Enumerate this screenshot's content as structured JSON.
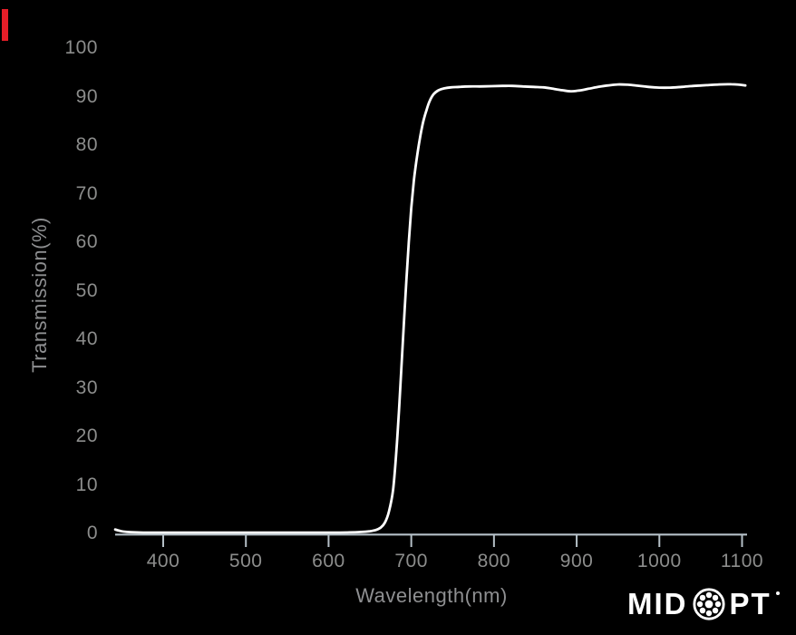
{
  "chart_data": {
    "type": "line",
    "title": "",
    "xlabel": "Wavelength(nm)",
    "ylabel": "Transmission(%)",
    "x_ticks": [
      400,
      500,
      600,
      700,
      800,
      900,
      1000,
      1100
    ],
    "y_ticks": [
      0,
      10,
      20,
      30,
      40,
      50,
      60,
      70,
      80,
      90,
      100
    ],
    "xlim": [
      342,
      1106
    ],
    "ylim": [
      0,
      100
    ],
    "grid": false,
    "legend": null,
    "series": [
      {
        "name": "transmission",
        "color": "#ffffff",
        "points": [
          [
            342,
            0.8
          ],
          [
            348,
            0.5
          ],
          [
            356,
            0.3
          ],
          [
            368,
            0.2
          ],
          [
            385,
            0.15
          ],
          [
            405,
            0.15
          ],
          [
            430,
            0.15
          ],
          [
            460,
            0.15
          ],
          [
            490,
            0.15
          ],
          [
            520,
            0.15
          ],
          [
            550,
            0.15
          ],
          [
            580,
            0.15
          ],
          [
            605,
            0.15
          ],
          [
            625,
            0.2
          ],
          [
            640,
            0.3
          ],
          [
            650,
            0.45
          ],
          [
            657,
            0.7
          ],
          [
            663,
            1.2
          ],
          [
            668,
            2.2
          ],
          [
            673,
            4.5
          ],
          [
            678,
            9
          ],
          [
            682,
            17
          ],
          [
            685,
            25
          ],
          [
            688,
            34
          ],
          [
            691,
            43
          ],
          [
            694,
            52
          ],
          [
            697,
            60
          ],
          [
            700,
            67
          ],
          [
            703,
            72.5
          ],
          [
            706,
            76.5
          ],
          [
            710,
            81
          ],
          [
            714,
            84.5
          ],
          [
            718,
            87
          ],
          [
            722,
            89
          ],
          [
            727,
            90.5
          ],
          [
            733,
            91.3
          ],
          [
            740,
            91.7
          ],
          [
            748,
            91.9
          ],
          [
            758,
            92.0
          ],
          [
            770,
            92.1
          ],
          [
            783,
            92.1
          ],
          [
            797,
            92.15
          ],
          [
            810,
            92.2
          ],
          [
            822,
            92.2
          ],
          [
            835,
            92.1
          ],
          [
            848,
            92.0
          ],
          [
            860,
            91.9
          ],
          [
            872,
            91.6
          ],
          [
            883,
            91.3
          ],
          [
            893,
            91.1
          ],
          [
            903,
            91.25
          ],
          [
            914,
            91.6
          ],
          [
            926,
            92.0
          ],
          [
            938,
            92.3
          ],
          [
            950,
            92.5
          ],
          [
            962,
            92.45
          ],
          [
            974,
            92.25
          ],
          [
            987,
            92.0
          ],
          [
            1000,
            91.85
          ],
          [
            1013,
            91.85
          ],
          [
            1027,
            92.0
          ],
          [
            1042,
            92.2
          ],
          [
            1057,
            92.35
          ],
          [
            1072,
            92.5
          ],
          [
            1087,
            92.55
          ],
          [
            1097,
            92.45
          ],
          [
            1104,
            92.3
          ]
        ]
      }
    ]
  },
  "logo": {
    "name": "MIDOPT",
    "left": "MID",
    "right": "PT",
    "registered": "®"
  },
  "colors": {
    "background": "#000000",
    "curve": "#ffffff",
    "axis_line": "#b5c0c7",
    "tick_text": "#8c8d8c",
    "axis_title_text": "#8e8f91",
    "accent_red": "#e61e28",
    "logo": "#ffffff"
  }
}
